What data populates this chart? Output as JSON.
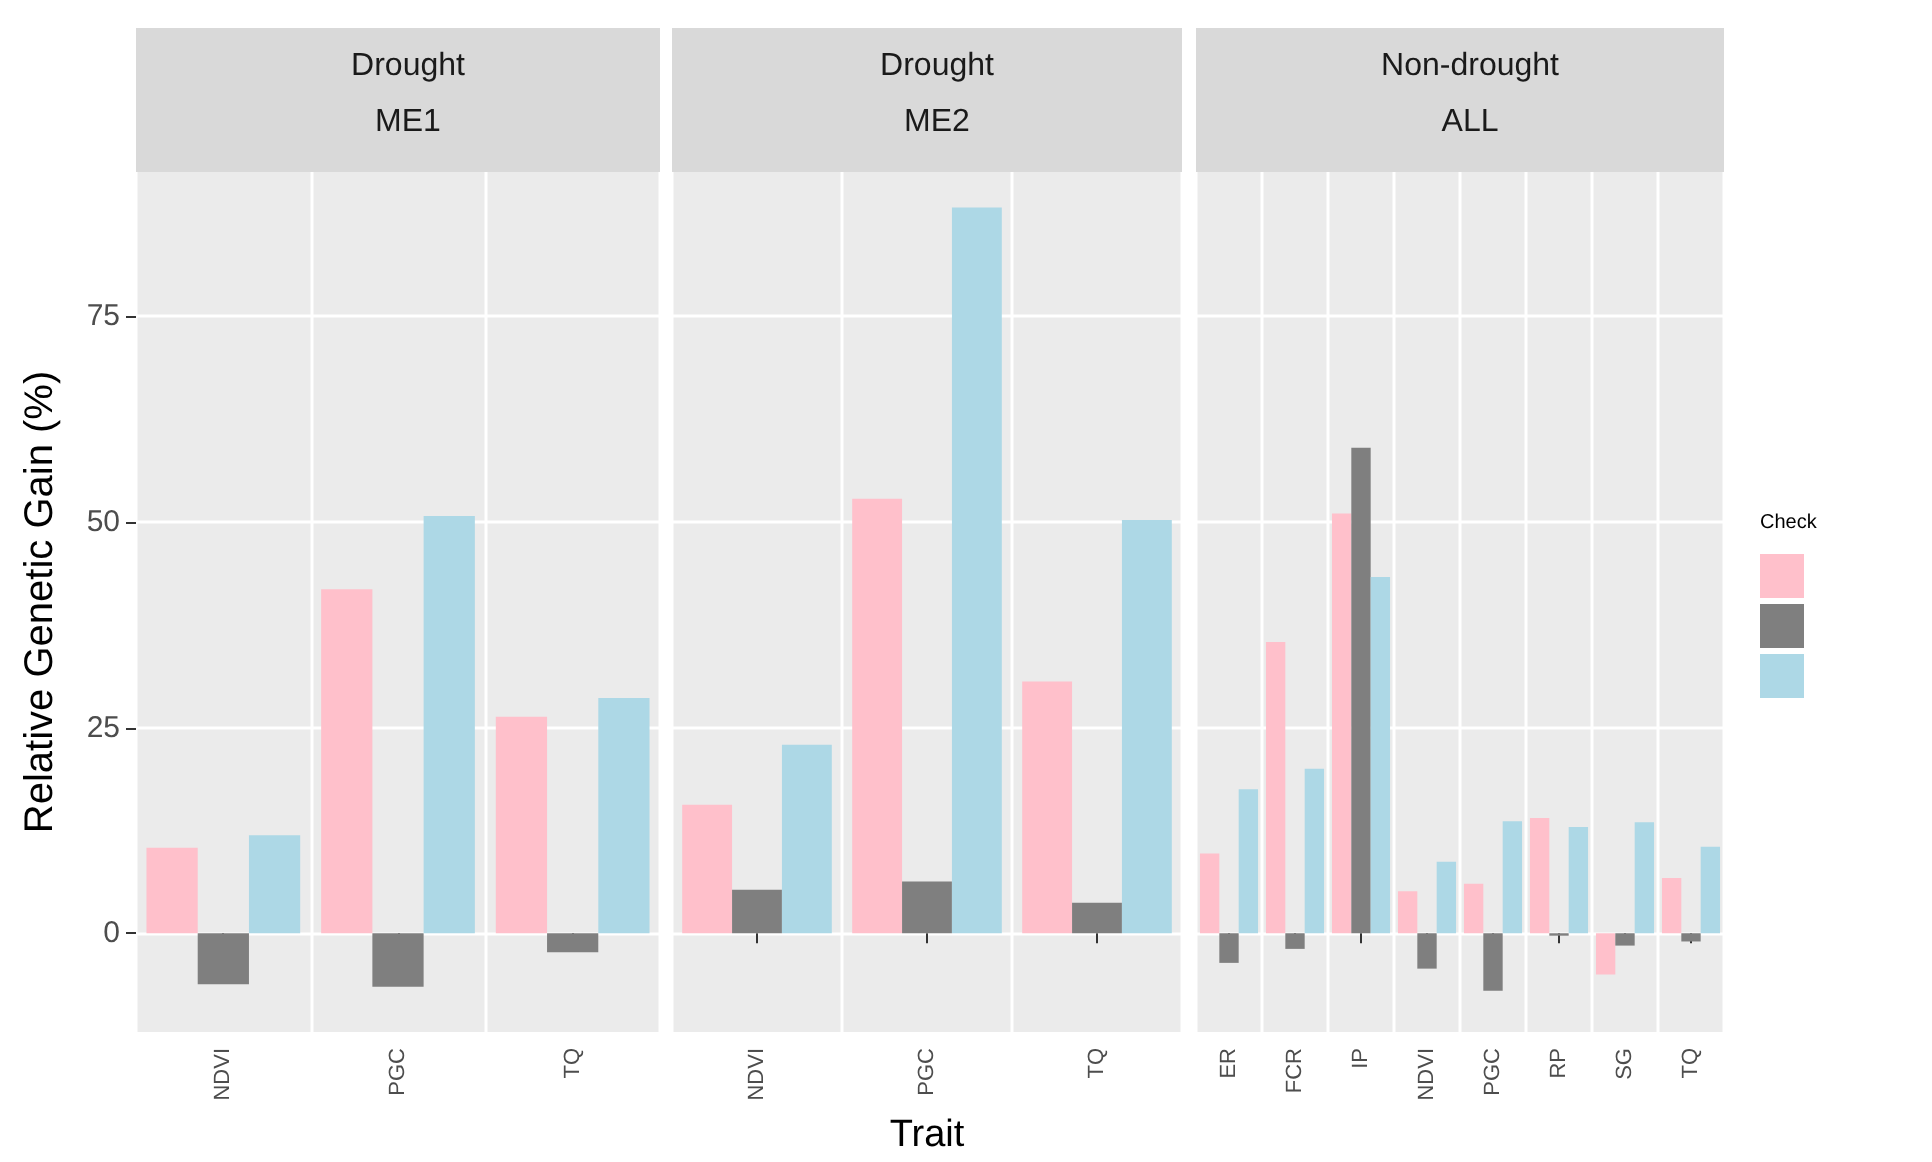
{
  "chart_data": [
    {
      "type": "bar",
      "title": "Drought",
      "subtitle": "ME1",
      "ylabel": "Relative Genetic Gain (%)",
      "categories": [
        "NDVI",
        "PGC",
        "TQ"
      ],
      "series": [
        {
          "color": "#ffc0cb",
          "values": [
            10.4,
            41.8,
            26.3
          ]
        },
        {
          "color": "#7f7f7f",
          "values": [
            -6.2,
            -6.5,
            -2.3
          ]
        },
        {
          "color": "#add8e6",
          "values": [
            11.9,
            50.7,
            28.6
          ]
        }
      ],
      "ylim": [
        -12,
        92.5
      ],
      "yticks": [
        0,
        25,
        50,
        75
      ],
      "grid": true
    },
    {
      "type": "bar",
      "title": "Drought",
      "subtitle": "ME2",
      "xlabel": "Trait",
      "categories": [
        "NDVI",
        "PGC",
        "TQ"
      ],
      "series": [
        {
          "color": "#ffc0cb",
          "values": [
            15.6,
            52.8,
            30.6
          ]
        },
        {
          "color": "#7f7f7f",
          "values": [
            5.3,
            6.3,
            3.7
          ]
        },
        {
          "color": "#add8e6",
          "values": [
            22.9,
            88.2,
            50.2
          ]
        }
      ],
      "ylim": [
        -12,
        92.5
      ],
      "yticks": [
        0,
        25,
        50,
        75
      ],
      "grid": true,
      "tick_labels": "x"
    },
    {
      "type": "bar",
      "title": "Non-drought",
      "subtitle": "ALL",
      "legend_title": "Check",
      "categories": [
        "ER",
        "FCR",
        "IP",
        "NDVI",
        "PGC",
        "RP",
        "SG",
        "TQ"
      ],
      "series": [
        {
          "color": "#ffc0cb",
          "values": [
            9.7,
            35.4,
            51,
            5.1,
            6,
            14,
            -5,
            6.7
          ]
        },
        {
          "color": "#7f7f7f",
          "values": [
            -3.6,
            -1.9,
            59,
            -4.3,
            -7,
            -0.3,
            -1.5,
            -1
          ]
        },
        {
          "color": "#add8e6",
          "values": [
            17.5,
            20,
            43.3,
            8.7,
            13.6,
            12.9,
            13.5,
            10.5
          ]
        }
      ],
      "ylim": [
        -12,
        92.5
      ],
      "yticks": [
        0,
        25,
        50,
        75
      ],
      "grid": true,
      "tick_labels": "x"
    }
  ]
}
